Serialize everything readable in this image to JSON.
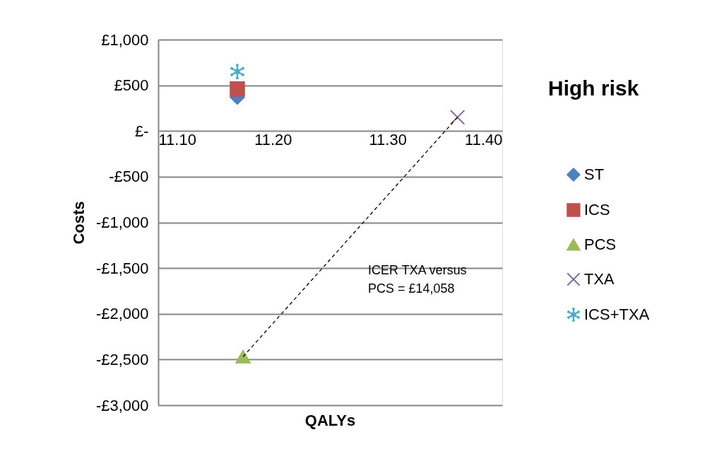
{
  "chart_data": {
    "type": "scatter",
    "xlabel": "QALYs",
    "ylabel": "Costs",
    "series": [
      {
        "name": "ST",
        "color": "#4f81bd",
        "marker": "diamond",
        "x": [
          11.169
        ],
        "values": [
          370
        ]
      },
      {
        "name": "ICS",
        "color": "#c0504d",
        "marker": "square",
        "x": [
          11.169
        ],
        "values": [
          460
        ]
      },
      {
        "name": "PCS",
        "color": "#9bbb59",
        "marker": "triangle",
        "x": [
          11.174
        ],
        "values": [
          -2470
        ]
      },
      {
        "name": "TXA",
        "color": "#8064a2",
        "marker": "cross",
        "x": [
          11.361
        ],
        "values": [
          150
        ]
      },
      {
        "name": "ICS+TXA",
        "color": "#4bacc6",
        "marker": "star",
        "x": [
          11.169
        ],
        "values": [
          650
        ]
      },
      {
        "type": "line",
        "color": "#000000",
        "line_style": "dashed",
        "marker": "none",
        "x": [
          11.174,
          11.361
        ],
        "values": [
          -2470,
          150
        ]
      }
    ],
    "xlim": [
      11.1,
      11.4
    ],
    "xticks": [
      {
        "value": 11.1,
        "label": "11.10"
      },
      {
        "value": 11.2,
        "label": "11.20"
      },
      {
        "value": 11.3,
        "label": "11.30"
      },
      {
        "value": 11.4,
        "label": "11.40"
      }
    ],
    "ylim": [
      -3000,
      1000
    ],
    "yticks": [
      {
        "value": -3000,
        "label": "-£3,000"
      },
      {
        "value": -2500,
        "label": "-£2,500"
      },
      {
        "value": -2000,
        "label": "-£2,000"
      },
      {
        "value": -1500,
        "label": "-£1,500"
      },
      {
        "value": -1000,
        "label": "-£1,000"
      },
      {
        "value": -500,
        "label": "-£500"
      },
      {
        "value": 0,
        "label": "£-"
      },
      {
        "value": 500,
        "label": "£500"
      },
      {
        "value": 1000,
        "label": "£1,000"
      }
    ],
    "grid": "y",
    "legend": "right",
    "annotations": [
      "High risk",
      "ICER TXA versus\nPCS = £14,058"
    ]
  }
}
